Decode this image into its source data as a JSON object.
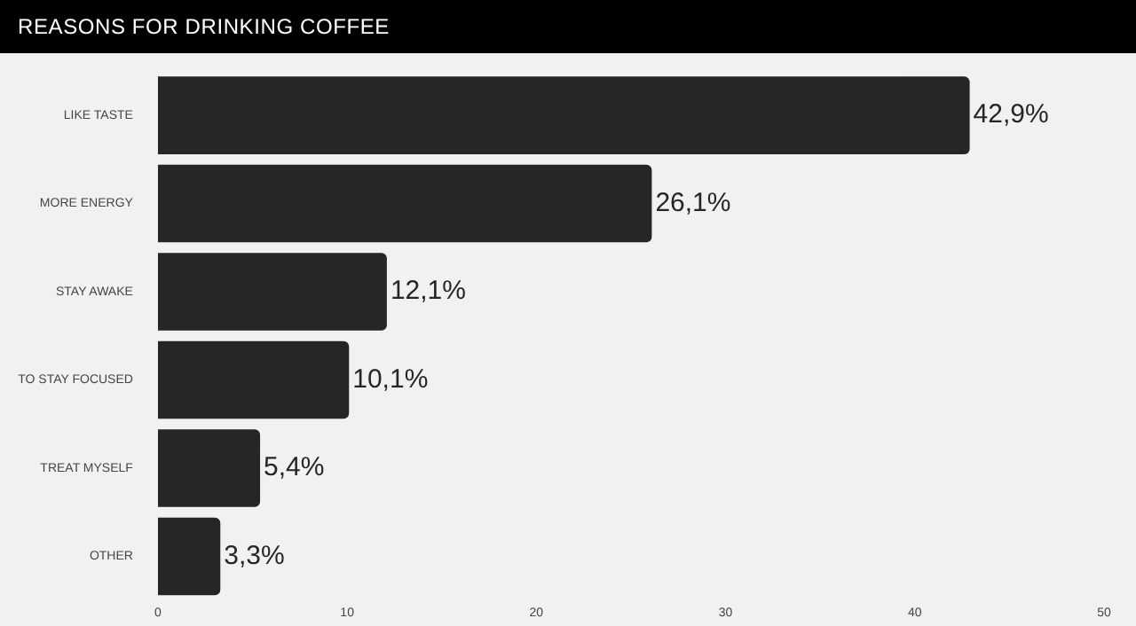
{
  "chart_data": {
    "type": "bar",
    "orientation": "horizontal",
    "title": "REASONS FOR DRINKING COFFEE",
    "categories": [
      "LIKE TASTE",
      "MORE ENERGY",
      "STAY AWAKE",
      "TO STAY FOCUSED",
      "TREAT MYSELF",
      "OTHER"
    ],
    "values": [
      42.9,
      26.1,
      12.1,
      10.1,
      5.4,
      3.3
    ],
    "value_labels": [
      "42,9%",
      "26,1%",
      "12,1%",
      "10,1%",
      "5,4%",
      "3,3%"
    ],
    "color": "#262626",
    "xlim": [
      0,
      50
    ],
    "xticks": [
      0,
      10,
      20,
      30,
      40,
      50
    ],
    "grid": false,
    "legend": false
  }
}
